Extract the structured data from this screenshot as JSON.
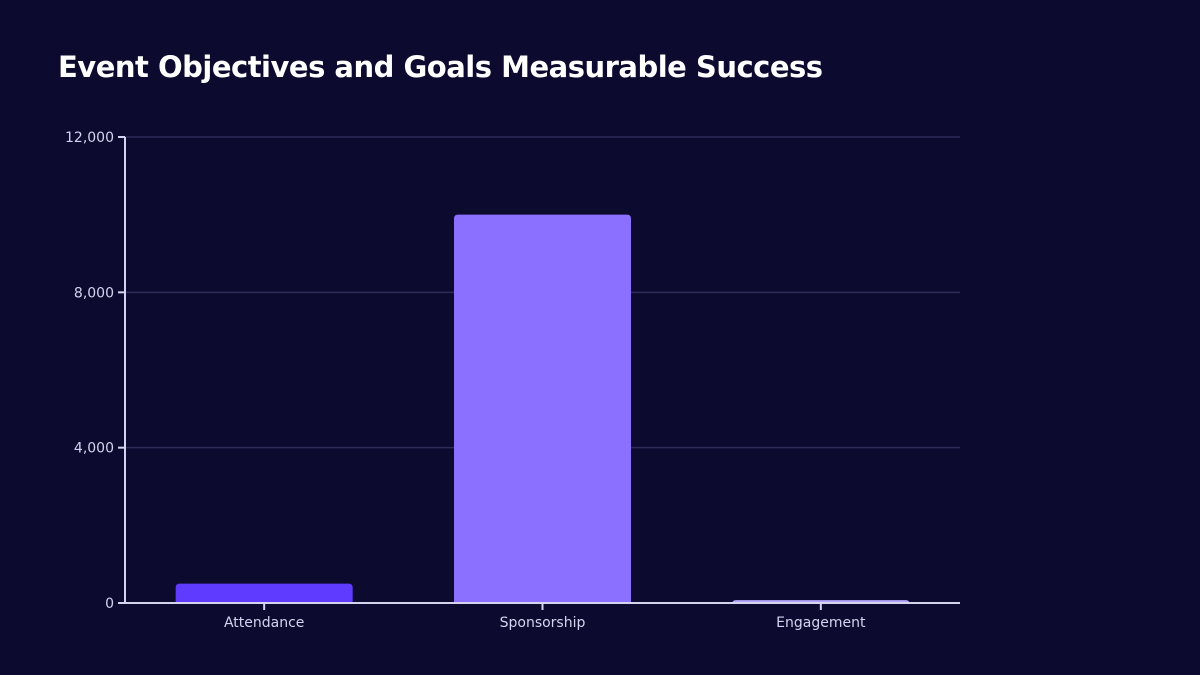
{
  "chart_data": {
    "type": "bar",
    "title": "Event Objectives and Goals Measurable Success",
    "categories": [
      "Attendance",
      "Sponsorship",
      "Engagement"
    ],
    "values": [
      500,
      10000,
      75
    ],
    "colors": [
      "#5f3bff",
      "#8b6fff",
      "#b3a6ff"
    ],
    "xlabel": "",
    "ylabel": "",
    "ylim": [
      0,
      12000
    ],
    "yticks": [
      0,
      4000,
      8000,
      12000
    ],
    "ytick_labels": [
      "0",
      "4,000",
      "8,000",
      "12,000"
    ],
    "grid": true,
    "legend": "none"
  }
}
